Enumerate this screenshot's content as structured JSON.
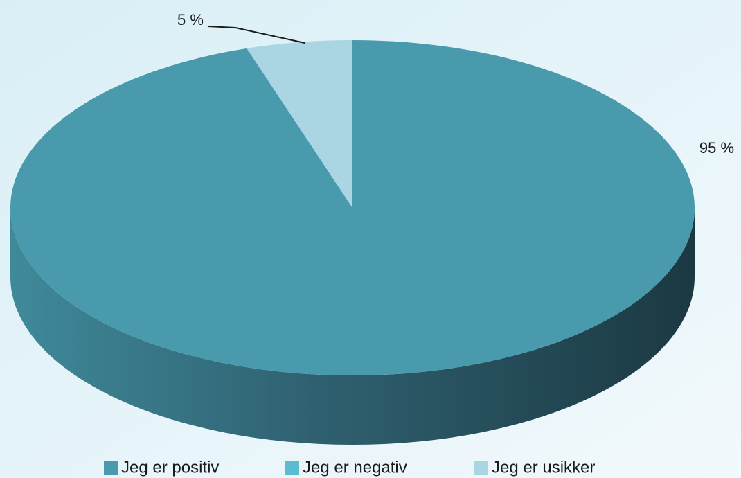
{
  "chart_data": {
    "type": "pie3d",
    "categories": [
      "Jeg er positiv",
      "Jeg er negativ",
      "Jeg er usikker"
    ],
    "values": [
      95,
      0,
      5
    ],
    "value_labels": [
      "95 %",
      null,
      "5 %"
    ],
    "colors": [
      "#4a9aad",
      "#5bbcd0",
      "#a9d6e2"
    ],
    "legend": "bottom"
  }
}
